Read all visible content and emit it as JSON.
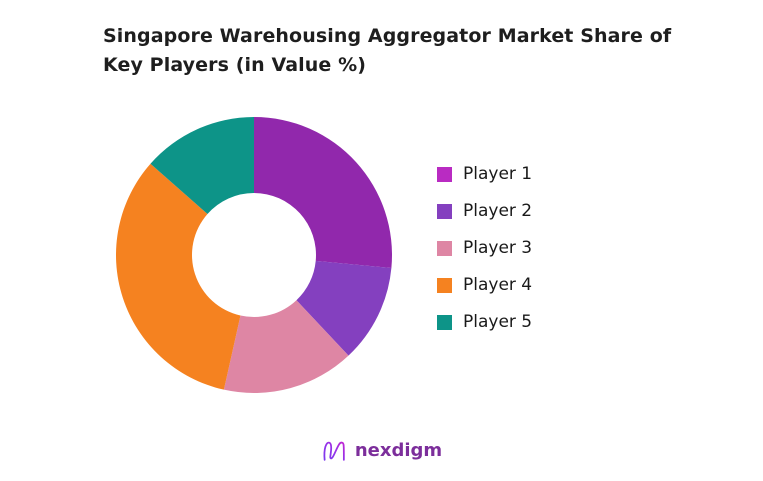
{
  "title": {
    "lines": [
      "Singapore Warehousing Aggregator Market Share of",
      "Key Players (in Value %)"
    ]
  },
  "chart_data": {
    "type": "pie",
    "subtype": "donut",
    "title": "Singapore Warehousing Aggregator Market Share of Key Players (in Value %)",
    "categories": [
      "Player 1",
      "Player 2",
      "Player 3",
      "Player 4",
      "Player 5"
    ],
    "values": [
      26.5,
      11.5,
      15.5,
      33.0,
      13.5
    ],
    "unit": "percent of market value",
    "start_angle_deg": 0,
    "direction": "clockwise",
    "inner_radius_ratio": 0.45,
    "slice_colors": [
      "#9128ac",
      "#8440bf",
      "#de86a4",
      "#f58220",
      "#0d9488"
    ],
    "legend_position": "right",
    "data_labels": "none"
  },
  "legend": {
    "items": [
      {
        "label": "Player 1",
        "color": "#b92bc2"
      },
      {
        "label": "Player 2",
        "color": "#8440bf"
      },
      {
        "label": "Player 3",
        "color": "#de86a4"
      },
      {
        "label": "Player 4",
        "color": "#f58220"
      },
      {
        "label": "Player 5",
        "color": "#0d9488"
      }
    ]
  },
  "footer": {
    "brand": "nexdigm",
    "brand_color": "#7c2e9b",
    "logo_gradient": [
      "#7c3aed",
      "#9333ea",
      "#c026d3"
    ]
  }
}
